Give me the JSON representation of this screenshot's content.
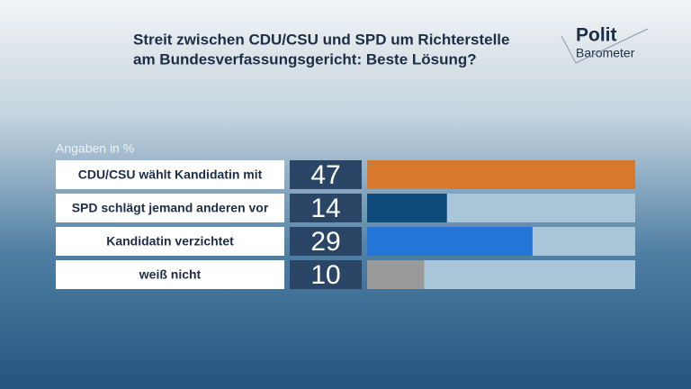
{
  "chart_data": {
    "type": "bar",
    "title": [
      "Streit zwischen CDU/CSU und SPD um Richterstelle",
      "am Bundesverfassungsgericht: Beste Lösung?"
    ],
    "subtitle": "Angaben in %",
    "logo": [
      "Polit",
      "Barometer"
    ],
    "categories": [
      "CDU/CSU wählt Kandidatin mit",
      "SPD schlägt jemand anderen vor",
      "Kandidatin verzichtet",
      "weiß nicht"
    ],
    "values": [
      47,
      14,
      29,
      10
    ],
    "colors": [
      "#d8772e",
      "#0f4c7c",
      "#2376d6",
      "#9a9a9a"
    ]
  }
}
